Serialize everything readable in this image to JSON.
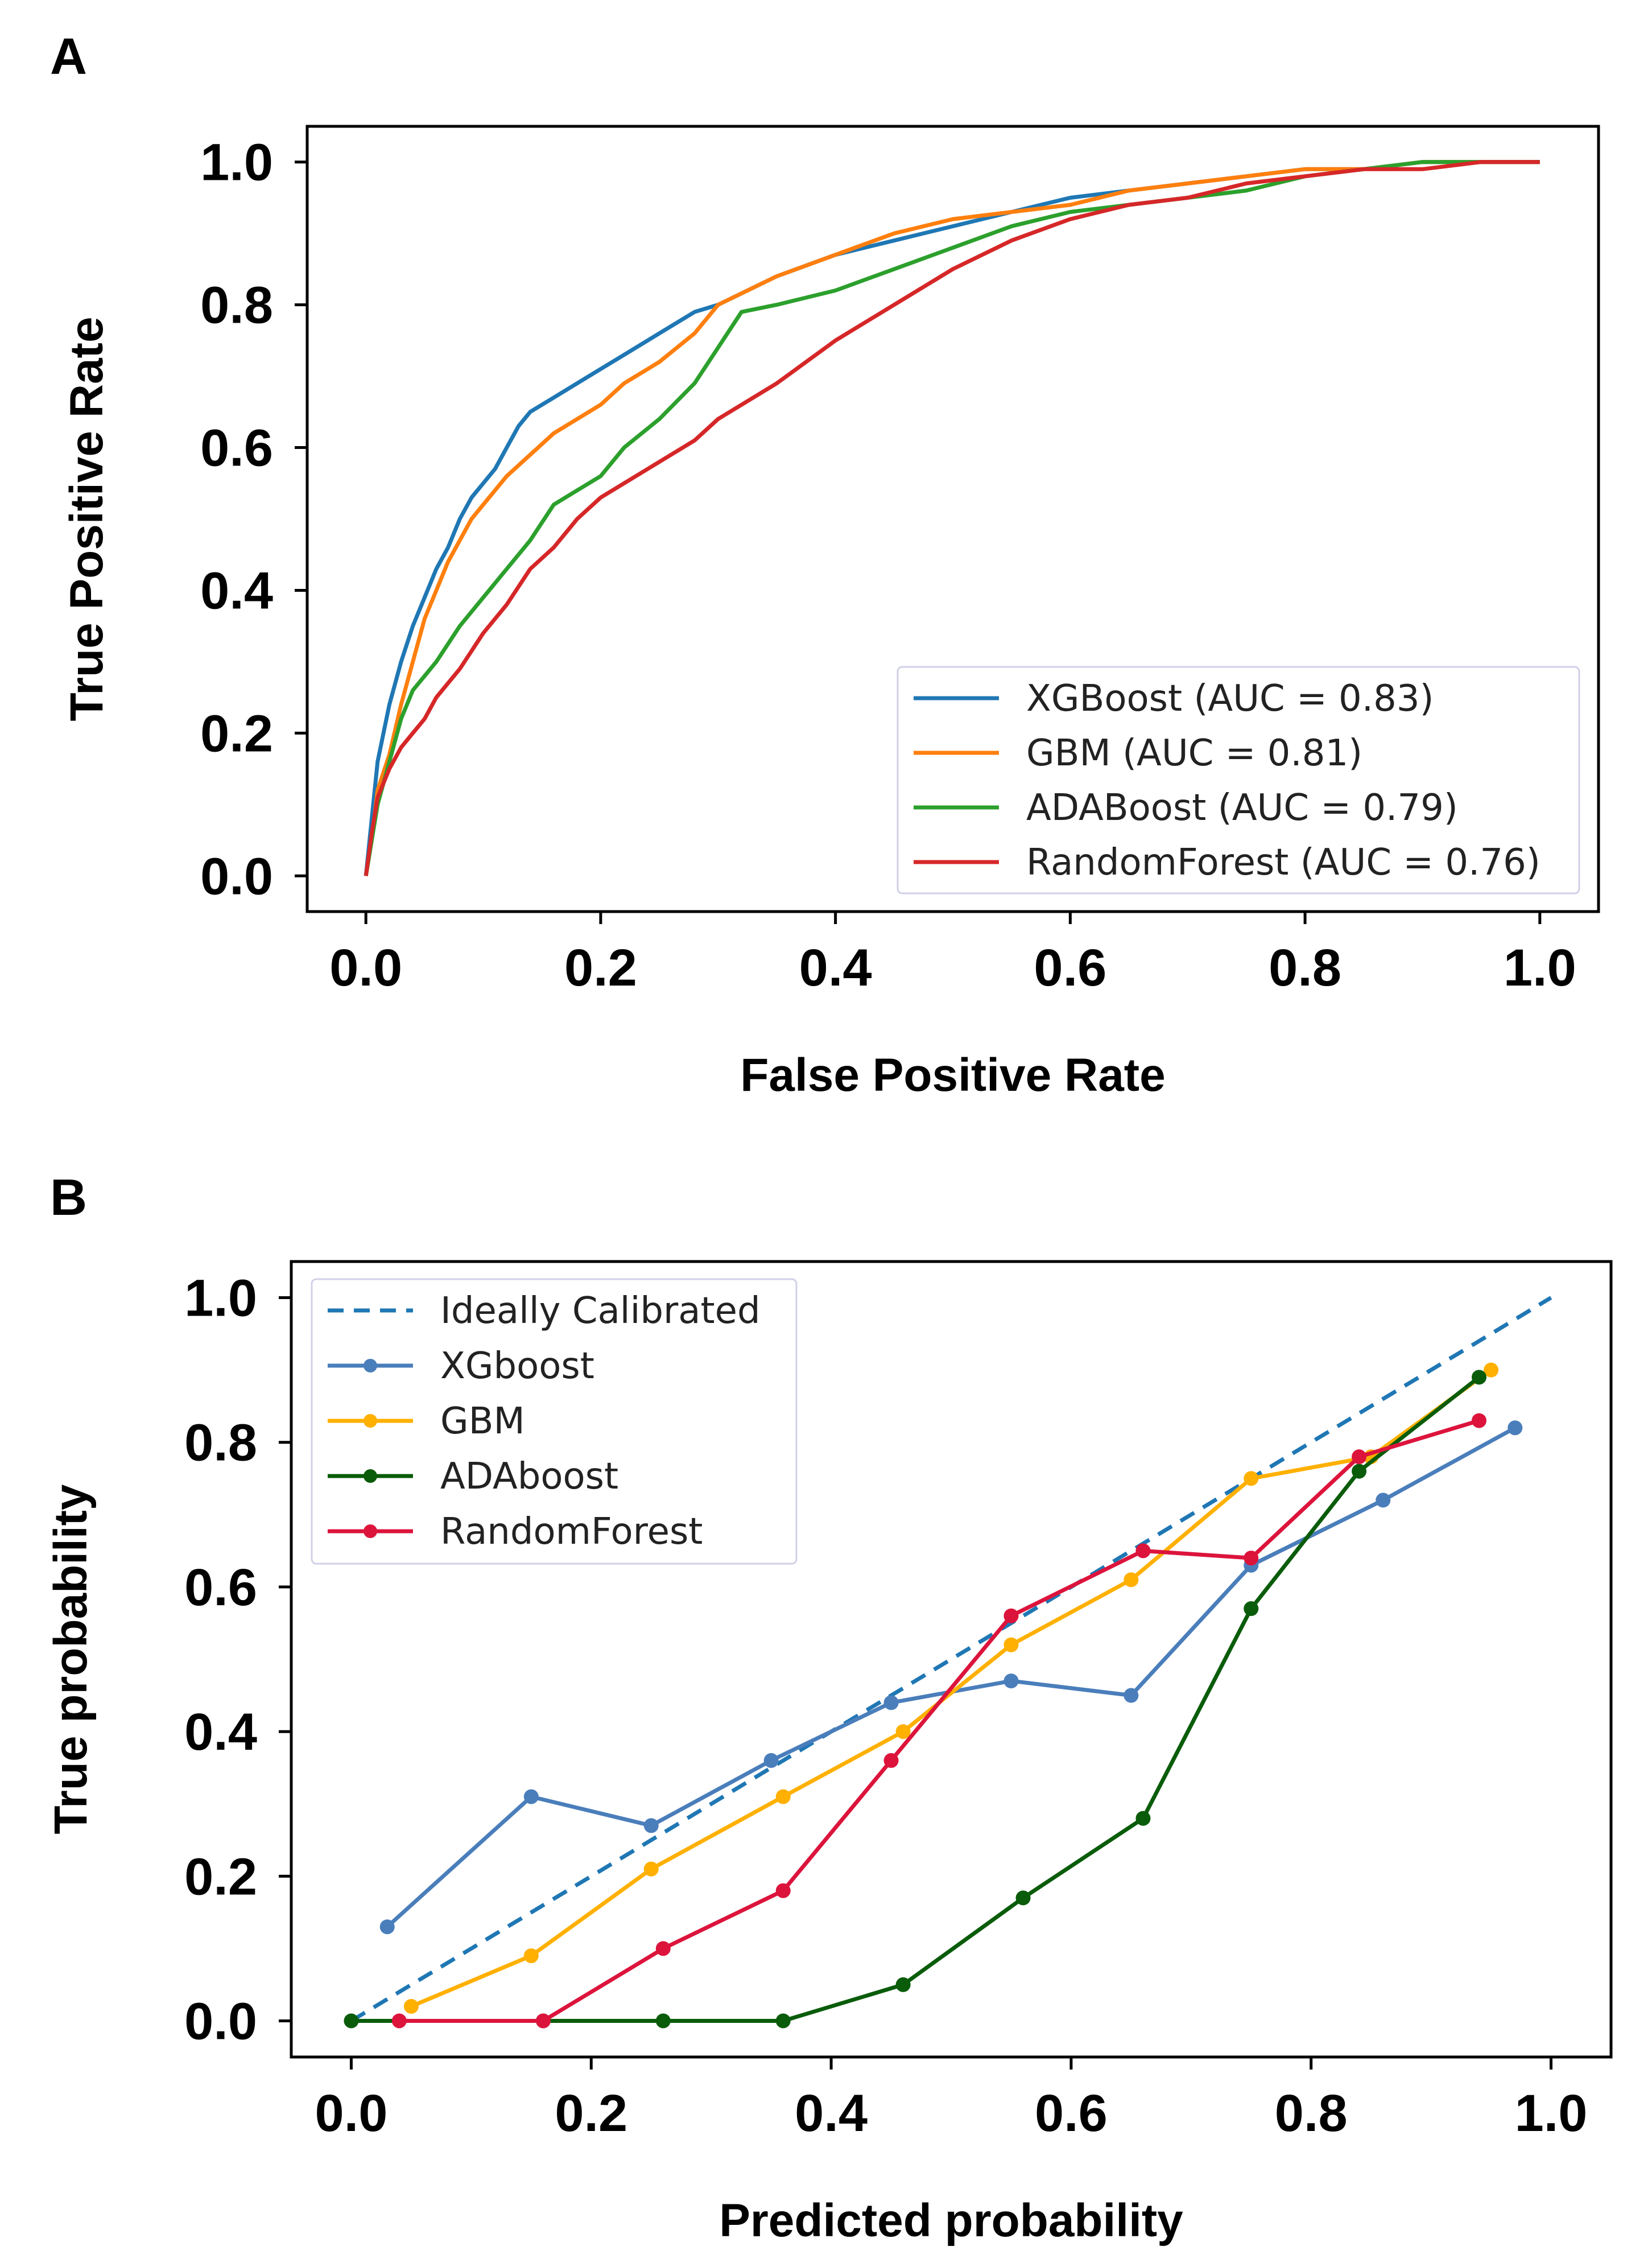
{
  "chart_data": [
    {
      "panel": "A",
      "type": "line",
      "title": "",
      "xlabel": "False Positive Rate",
      "ylabel": "True Positive Rate",
      "xlim": [
        -0.05,
        1.05
      ],
      "ylim": [
        -0.05,
        1.05
      ],
      "xticks": [
        0.0,
        0.2,
        0.4,
        0.6,
        0.8,
        1.0
      ],
      "yticks": [
        0.0,
        0.2,
        0.4,
        0.6,
        0.8,
        1.0
      ],
      "xtick_labels": [
        "0.0",
        "0.2",
        "0.4",
        "0.6",
        "0.8",
        "1.0"
      ],
      "ytick_labels": [
        "0.0",
        "0.2",
        "0.4",
        "0.6",
        "0.8",
        "1.0"
      ],
      "grid": false,
      "legend_position": "bottom-right",
      "series": [
        {
          "name": "XGBoost (AUC = 0.83)",
          "color": "#1f77b4",
          "x": [
            0.0,
            0.005,
            0.01,
            0.015,
            0.02,
            0.03,
            0.04,
            0.05,
            0.06,
            0.07,
            0.08,
            0.09,
            0.1,
            0.11,
            0.12,
            0.13,
            0.14,
            0.16,
            0.18,
            0.2,
            0.22,
            0.25,
            0.28,
            0.3,
            0.35,
            0.4,
            0.45,
            0.5,
            0.55,
            0.6,
            0.65,
            0.7,
            0.75,
            0.8,
            0.85,
            0.9,
            0.95,
            1.0
          ],
          "y": [
            0.0,
            0.08,
            0.16,
            0.2,
            0.24,
            0.3,
            0.35,
            0.39,
            0.43,
            0.46,
            0.5,
            0.53,
            0.55,
            0.57,
            0.6,
            0.63,
            0.65,
            0.67,
            0.69,
            0.71,
            0.73,
            0.76,
            0.79,
            0.8,
            0.84,
            0.87,
            0.89,
            0.91,
            0.93,
            0.95,
            0.96,
            0.97,
            0.98,
            0.99,
            0.99,
            1.0,
            1.0,
            1.0
          ]
        },
        {
          "name": "GBM (AUC = 0.81)",
          "color": "#ff7f0e",
          "x": [
            0.0,
            0.005,
            0.01,
            0.02,
            0.03,
            0.04,
            0.05,
            0.06,
            0.07,
            0.08,
            0.09,
            0.1,
            0.12,
            0.14,
            0.16,
            0.18,
            0.2,
            0.22,
            0.25,
            0.28,
            0.3,
            0.35,
            0.4,
            0.45,
            0.5,
            0.55,
            0.6,
            0.65,
            0.7,
            0.75,
            0.8,
            0.85,
            0.9,
            0.95,
            1.0
          ],
          "y": [
            0.0,
            0.05,
            0.12,
            0.17,
            0.24,
            0.3,
            0.36,
            0.4,
            0.44,
            0.47,
            0.5,
            0.52,
            0.56,
            0.59,
            0.62,
            0.64,
            0.66,
            0.69,
            0.72,
            0.76,
            0.8,
            0.84,
            0.87,
            0.9,
            0.92,
            0.93,
            0.94,
            0.96,
            0.97,
            0.98,
            0.99,
            0.99,
            1.0,
            1.0,
            1.0
          ]
        },
        {
          "name": "ADABoost (AUC = 0.79)",
          "color": "#2ca02c",
          "x": [
            0.0,
            0.005,
            0.01,
            0.02,
            0.03,
            0.04,
            0.05,
            0.06,
            0.08,
            0.1,
            0.12,
            0.14,
            0.16,
            0.18,
            0.2,
            0.22,
            0.25,
            0.28,
            0.3,
            0.32,
            0.35,
            0.4,
            0.45,
            0.5,
            0.55,
            0.6,
            0.65,
            0.7,
            0.75,
            0.8,
            0.85,
            0.9,
            0.95,
            1.0
          ],
          "y": [
            0.0,
            0.05,
            0.1,
            0.16,
            0.22,
            0.26,
            0.28,
            0.3,
            0.35,
            0.39,
            0.43,
            0.47,
            0.52,
            0.54,
            0.56,
            0.6,
            0.64,
            0.69,
            0.74,
            0.79,
            0.8,
            0.82,
            0.85,
            0.88,
            0.91,
            0.93,
            0.94,
            0.95,
            0.96,
            0.98,
            0.99,
            1.0,
            1.0,
            1.0
          ]
        },
        {
          "name": "RandomForest (AUC = 0.76)",
          "color": "#d62728",
          "x": [
            0.0,
            0.005,
            0.01,
            0.02,
            0.03,
            0.04,
            0.05,
            0.06,
            0.08,
            0.1,
            0.12,
            0.14,
            0.16,
            0.18,
            0.2,
            0.22,
            0.25,
            0.28,
            0.3,
            0.35,
            0.4,
            0.45,
            0.5,
            0.55,
            0.6,
            0.65,
            0.7,
            0.75,
            0.8,
            0.85,
            0.9,
            0.95,
            1.0
          ],
          "y": [
            0.0,
            0.06,
            0.11,
            0.15,
            0.18,
            0.2,
            0.22,
            0.25,
            0.29,
            0.34,
            0.38,
            0.43,
            0.46,
            0.5,
            0.53,
            0.55,
            0.58,
            0.61,
            0.64,
            0.69,
            0.75,
            0.8,
            0.85,
            0.89,
            0.92,
            0.94,
            0.95,
            0.97,
            0.98,
            0.99,
            0.99,
            1.0,
            1.0
          ]
        }
      ]
    },
    {
      "panel": "B",
      "type": "line",
      "title": "",
      "xlabel": "Predicted probability",
      "ylabel": "True probability",
      "xlim": [
        -0.05,
        1.05
      ],
      "ylim": [
        -0.05,
        1.05
      ],
      "xticks": [
        0.0,
        0.2,
        0.4,
        0.6,
        0.8,
        1.0
      ],
      "yticks": [
        0.0,
        0.2,
        0.4,
        0.6,
        0.8,
        1.0
      ],
      "xtick_labels": [
        "0.0",
        "0.2",
        "0.4",
        "0.6",
        "0.8",
        "1.0"
      ],
      "ytick_labels": [
        "0.0",
        "0.2",
        "0.4",
        "0.6",
        "0.8",
        "1.0"
      ],
      "grid": false,
      "legend_position": "top-left",
      "series": [
        {
          "name": "Ideally Calibrated",
          "color": "#1f77b4",
          "dashed": true,
          "markers": false,
          "x": [
            0.0,
            1.0
          ],
          "y": [
            0.0,
            1.0
          ]
        },
        {
          "name": "XGboost",
          "color": "#4a7ebb",
          "dashed": false,
          "markers": true,
          "x": [
            0.03,
            0.15,
            0.25,
            0.35,
            0.45,
            0.55,
            0.65,
            0.75,
            0.86,
            0.97
          ],
          "y": [
            0.13,
            0.31,
            0.27,
            0.36,
            0.44,
            0.47,
            0.45,
            0.63,
            0.72,
            0.82
          ]
        },
        {
          "name": "GBM",
          "color": "#ffb000",
          "dashed": false,
          "markers": true,
          "x": [
            0.05,
            0.15,
            0.25,
            0.36,
            0.46,
            0.55,
            0.65,
            0.75,
            0.85,
            0.95
          ],
          "y": [
            0.02,
            0.09,
            0.21,
            0.31,
            0.4,
            0.52,
            0.61,
            0.75,
            0.78,
            0.9
          ]
        },
        {
          "name": "ADAboost",
          "color": "#0a5c0a",
          "dashed": false,
          "markers": true,
          "x": [
            0.0,
            0.16,
            0.26,
            0.36,
            0.46,
            0.56,
            0.66,
            0.75,
            0.84,
            0.94
          ],
          "y": [
            0.0,
            0.0,
            0.0,
            0.0,
            0.05,
            0.17,
            0.28,
            0.57,
            0.76,
            0.89
          ]
        },
        {
          "name": "RandomForest",
          "color": "#dc143c",
          "dashed": false,
          "markers": true,
          "x": [
            0.04,
            0.16,
            0.26,
            0.36,
            0.45,
            0.55,
            0.66,
            0.75,
            0.84,
            0.94
          ],
          "y": [
            0.0,
            0.0,
            0.1,
            0.18,
            0.36,
            0.56,
            0.65,
            0.64,
            0.78,
            0.83
          ]
        }
      ]
    }
  ]
}
